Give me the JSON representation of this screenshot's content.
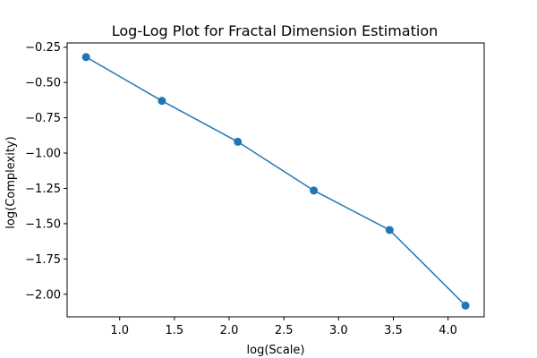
{
  "chart_data": {
    "type": "line",
    "title": "Log-Log Plot for Fractal Dimension Estimation",
    "xlabel": "log(Scale)",
    "ylabel": "log(Complexity)",
    "xlim": [
      0.52,
      4.33
    ],
    "ylim": [
      -2.16,
      -0.22
    ],
    "xticks": [
      1.0,
      1.5,
      2.0,
      2.5,
      3.0,
      3.5,
      4.0
    ],
    "yticks": [
      -0.25,
      -0.5,
      -0.75,
      -1.0,
      -1.25,
      -1.5,
      -1.75,
      -2.0
    ],
    "grid": false,
    "marker": "circle",
    "colors": {
      "series": "#1f77b4"
    },
    "series": [
      {
        "x": [
          0.693,
          1.386,
          2.079,
          2.773,
          3.466,
          4.159
        ],
        "y": [
          -0.32,
          -0.63,
          -0.92,
          -1.265,
          -1.545,
          -2.08
        ]
      }
    ]
  }
}
